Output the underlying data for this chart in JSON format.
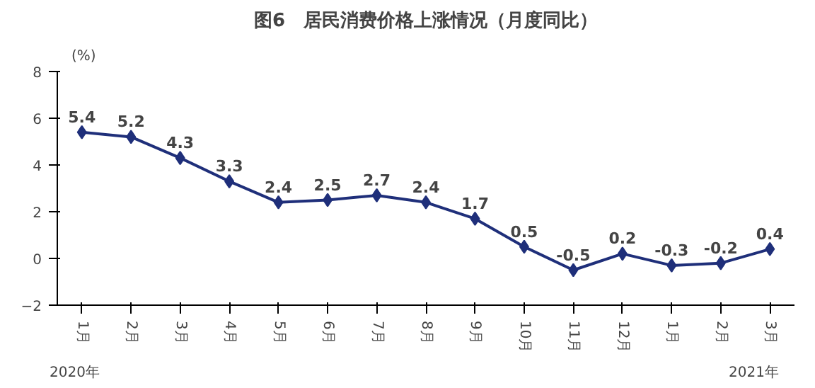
{
  "chart_data": {
    "type": "line",
    "title": "图6　居民消费价格上涨情况（月度同比）",
    "ylabel": "(%)",
    "categories": [
      "1月",
      "2月",
      "3月",
      "4月",
      "5月",
      "6月",
      "7月",
      "8月",
      "9月",
      "10月",
      "11月",
      "12月",
      "1月",
      "2月",
      "3月"
    ],
    "series": [
      {
        "color": "#1f2f7a",
        "values": [
          5.4,
          5.2,
          4.3,
          3.3,
          2.4,
          2.5,
          2.7,
          2.4,
          1.7,
          0.5,
          -0.5,
          0.2,
          -0.3,
          -0.2,
          0.4
        ]
      }
    ],
    "ylim": [
      -2,
      8
    ],
    "yticks": [
      -2,
      0,
      2,
      4,
      6,
      8
    ],
    "marker": "diamond",
    "line_style": "solid",
    "data_labels": true,
    "grid": false,
    "annotations": [
      "2020年",
      "2021年"
    ]
  }
}
